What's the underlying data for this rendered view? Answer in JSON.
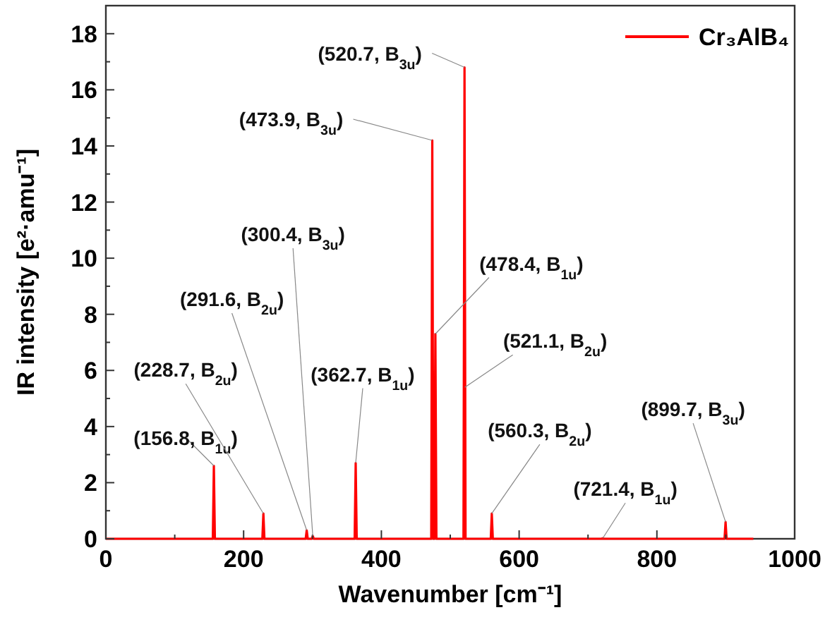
{
  "chart_data": {
    "type": "line",
    "xlabel": "Wavenumber [cm⁻¹]",
    "ylabel": "IR intensity [e²·amu⁻¹]",
    "xlim": [
      0,
      1000
    ],
    "ylim": [
      0,
      19
    ],
    "xticks": [
      0,
      {
        "value": 100,
        "label": null
      },
      200,
      {
        "value": 300,
        "label": null
      },
      400,
      {
        "value": 500,
        "label": null
      },
      600,
      {
        "value": 700,
        "label": null
      },
      800,
      {
        "value": 900,
        "label": null
      },
      1000
    ],
    "yticks": [
      0,
      {
        "value": 1,
        "label": null
      },
      2,
      {
        "value": 3,
        "label": null
      },
      4,
      {
        "value": 5,
        "label": null
      },
      6,
      {
        "value": 7,
        "label": null
      },
      8,
      {
        "value": 9,
        "label": null
      },
      10,
      {
        "value": 11,
        "label": null
      },
      12,
      {
        "value": 13,
        "label": null
      },
      14,
      {
        "value": 15,
        "label": null
      },
      16,
      {
        "value": 17,
        "label": null
      },
      18
    ],
    "grid": false,
    "legend": "top right",
    "line_style": "solid",
    "series": [
      {
        "name": "Cr₃AlB₄",
        "color": "#ff0000",
        "x": [
          0,
          155.3,
          156.8,
          158.3,
          227.2,
          228.7,
          230.2,
          290.1,
          291.6,
          293.1,
          298.9,
          300.4,
          301.9,
          361.2,
          362.7,
          364.2,
          472.4,
          473.9,
          475.4,
          476.9,
          478.4,
          479.9,
          519.2,
          520.7,
          522.2,
          558.8,
          560.3,
          561.8,
          719.9,
          721.4,
          722.9,
          898.2,
          899.7,
          901.2,
          940
        ],
        "values": [
          0,
          0,
          2.6,
          0,
          0,
          0.9,
          0,
          0,
          0.3,
          0,
          0,
          0.1,
          0,
          0,
          2.7,
          0,
          0,
          14.2,
          0,
          0,
          7.3,
          0,
          0,
          16.8,
          0,
          0,
          0.9,
          0,
          0,
          0.02,
          0,
          0,
          0.6,
          0,
          0
        ]
      }
    ],
    "annotations": [
      {
        "text": "(156.8, B$_{1u}$)",
        "x": 156.8,
        "y": 2.6
      },
      {
        "text": "(228.7, B$_{2u}$)",
        "x": 228.7,
        "y": 0.9
      },
      {
        "text": "(291.6, B$_{2u}$)",
        "x": 291.6,
        "y": 0.3
      },
      {
        "text": "(300.4, B$_{3u}$)",
        "x": 300.4,
        "y": 0.1
      },
      {
        "text": "(362.7, B$_{1u}$)",
        "x": 362.7,
        "y": 2.7
      },
      {
        "text": "(473.9, B$_{3u}$)",
        "x": 473.9,
        "y": 14.2
      },
      {
        "text": "(520.7, B$_{3u}$)",
        "x": 520.7,
        "y": 16.8
      },
      {
        "text": "(478.4, B$_{1u}$)",
        "x": 478.4,
        "y": 7.3
      },
      {
        "text": "(521.1, B$_{2u}$)",
        "x": 521.1,
        "y": 5.4
      },
      {
        "text": "(560.3, B$_{2u}$)",
        "x": 560.3,
        "y": 0.9
      },
      {
        "text": "(721.4, B$_{1u}$)",
        "x": 721.4,
        "y": 0.02
      },
      {
        "text": "(899.7, B$_{3u}$)",
        "x": 899.7,
        "y": 0.6
      }
    ]
  }
}
